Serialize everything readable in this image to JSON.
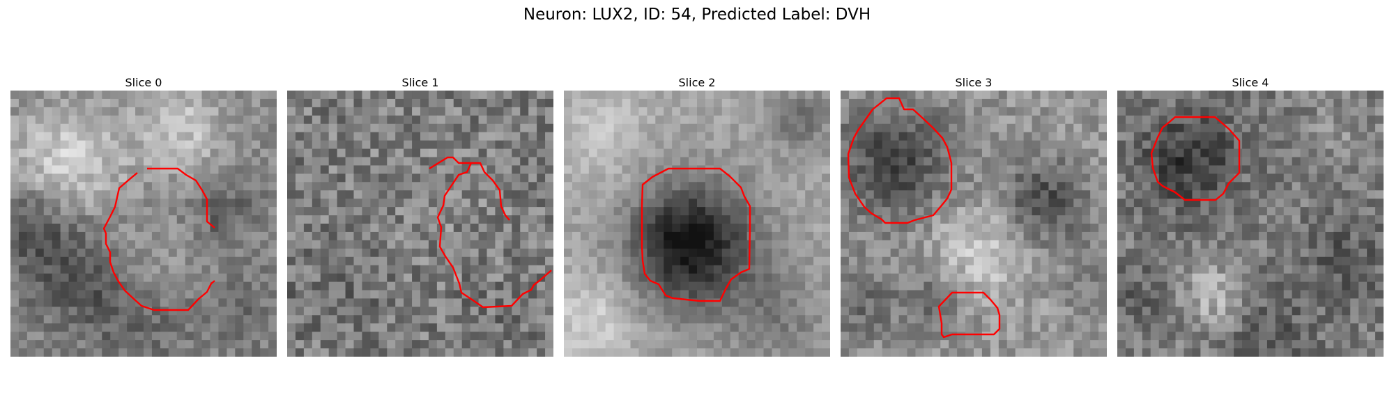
{
  "figure": {
    "title": "Neuron: LUX2, ID: 54, Predicted Label: DVH"
  },
  "contour_color": "#ff0000",
  "panels": [
    {
      "title": "Slice 0"
    },
    {
      "title": "Slice 1"
    },
    {
      "title": "Slice 2"
    },
    {
      "title": "Slice 3"
    },
    {
      "title": "Slice 4"
    }
  ]
}
